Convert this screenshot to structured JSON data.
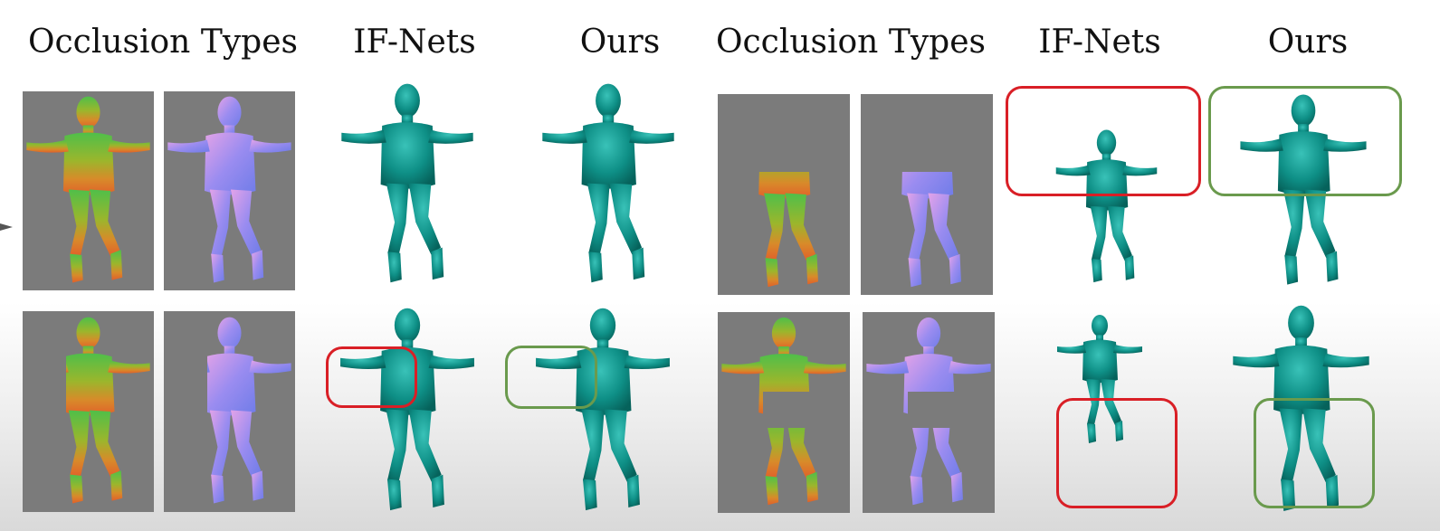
{
  "headers": {
    "left_occlusion_types": "Occlusion Types",
    "left_ifnets": "IF-Nets",
    "left_ours": "Ours",
    "right_occlusion_types": "Occlusion Types",
    "right_ifnets": "IF-Nets",
    "right_ours": "Ours"
  },
  "colors": {
    "tile_background": "#7b7b7b",
    "mesh_teal": "#0e8f86",
    "failure_box": "#d91f26",
    "success_box": "#6a9a4d"
  }
}
